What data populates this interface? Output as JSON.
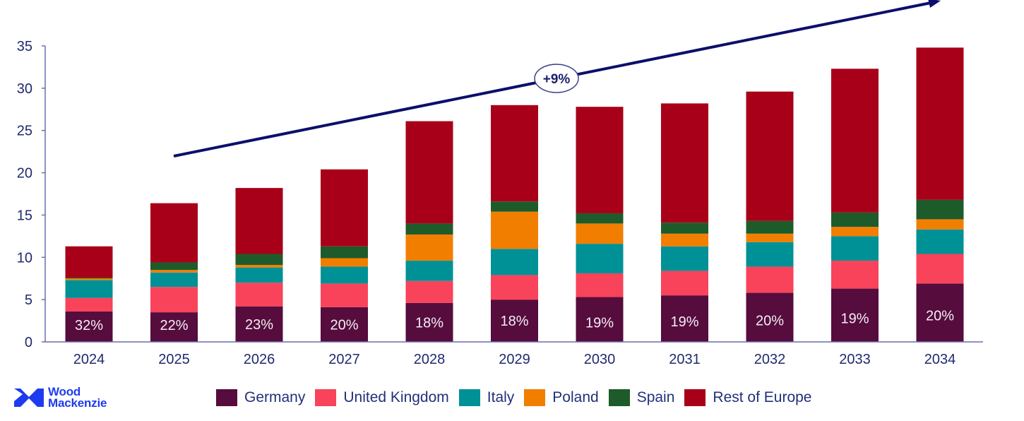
{
  "chart_data": {
    "type": "bar",
    "stacked": true,
    "title": "",
    "xlabel": "",
    "ylabel": "",
    "ylim": [
      0,
      35
    ],
    "yticks": [
      0,
      5,
      10,
      15,
      20,
      25,
      30,
      35
    ],
    "grid": false,
    "legend_position": "bottom",
    "categories": [
      "2024",
      "2025",
      "2026",
      "2027",
      "2028",
      "2029",
      "2030",
      "2031",
      "2032",
      "2033",
      "2034"
    ],
    "series": [
      {
        "name": "Germany",
        "color": "#560c3c",
        "values": [
          3.6,
          3.5,
          4.2,
          4.1,
          4.6,
          5.0,
          5.3,
          5.5,
          5.8,
          6.3,
          6.9
        ]
      },
      {
        "name": "United Kingdom",
        "color": "#f8435a",
        "values": [
          1.6,
          3.0,
          2.8,
          2.8,
          2.6,
          2.9,
          2.8,
          2.9,
          3.1,
          3.3,
          3.5
        ]
      },
      {
        "name": "Italy",
        "color": "#009196",
        "values": [
          2.1,
          1.7,
          1.8,
          2.0,
          2.4,
          3.1,
          3.5,
          2.9,
          2.9,
          2.9,
          2.9
        ]
      },
      {
        "name": "Poland",
        "color": "#f27e00",
        "values": [
          0.2,
          0.3,
          0.3,
          1.0,
          3.1,
          4.4,
          2.4,
          1.5,
          1.0,
          1.1,
          1.2
        ]
      },
      {
        "name": "Spain",
        "color": "#1e5b2b",
        "values": [
          0.1,
          0.9,
          1.3,
          1.4,
          1.3,
          1.2,
          1.2,
          1.3,
          1.5,
          1.7,
          2.3
        ]
      },
      {
        "name": "Rest of Europe",
        "color": "#a80019",
        "values": [
          3.7,
          7.0,
          7.8,
          9.1,
          12.1,
          11.4,
          12.6,
          14.1,
          15.3,
          17.0,
          18.0
        ]
      }
    ],
    "totals": [
      11.3,
      16.4,
      18.2,
      20.4,
      26.1,
      28.0,
      27.8,
      28.2,
      29.6,
      32.3,
      34.8
    ],
    "germany_share_labels": [
      "32%",
      "22%",
      "23%",
      "20%",
      "18%",
      "18%",
      "19%",
      "19%",
      "20%",
      "19%",
      "20%"
    ],
    "annotations": [
      {
        "type": "trend-arrow",
        "label": "+9%",
        "from": "2025",
        "to": "2034+"
      }
    ]
  },
  "trend": {
    "label": "+9%",
    "color": "#0d0f6b"
  },
  "axis_color": "#6b6fae",
  "text_color": "#1f2a6e",
  "logo": {
    "line1": "Wood",
    "line2": "Mackenzie",
    "color": "#1d3cf0"
  },
  "legend": [
    {
      "label": "Germany",
      "color": "#560c3c"
    },
    {
      "label": "United Kingdom",
      "color": "#f8435a"
    },
    {
      "label": "Italy",
      "color": "#009196"
    },
    {
      "label": "Poland",
      "color": "#f27e00"
    },
    {
      "label": "Spain",
      "color": "#1e5b2b"
    },
    {
      "label": "Rest of Europe",
      "color": "#a80019"
    }
  ]
}
